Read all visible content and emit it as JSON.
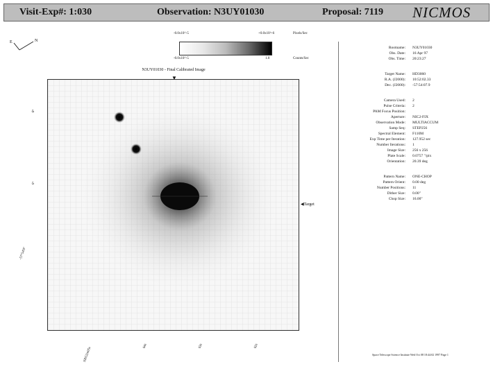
{
  "header": {
    "visit": "Visit-Exp#: 1:030",
    "observation": "Observation: N3UY01030",
    "proposal": "Proposal: 7119",
    "instrument": "NICMOS"
  },
  "compass": {
    "north_label": "N",
    "east_label": "E"
  },
  "colorbar": {
    "top_left": "-0.0x10^-5",
    "top_right": "+0.0x10^-6",
    "top_unit": "Pixels/Sec",
    "bottom_left": "-0.0x10^-5",
    "bottom_right": "1.0",
    "bottom_unit": "Counts/Sec"
  },
  "image_title": "N3UY01030 - Final Calibrated Image",
  "target_label": "Target",
  "axis_left_ticks": [
    "8°",
    "6°",
    "-57°54'0\"",
    ""
  ],
  "axis_bottom_ticks": [
    "10h52m05s",
    "04s",
    "03s",
    "02s"
  ],
  "info": {
    "group1": [
      {
        "label": "Rootname:",
        "value": "N3UY01030"
      },
      {
        "label": "Obs. Date:",
        "value": "16 Apr 97"
      },
      {
        "label": "Obs. Time:",
        "value": "20:23:27"
      }
    ],
    "group2": [
      {
        "label": "Target Name:",
        "value": "HD3060"
      },
      {
        "label": "R.A. (J2000):",
        "value": "10:52:02.33"
      },
      {
        "label": "Dec. (J2000):",
        "value": "-57:54:07.9"
      }
    ],
    "group3": [
      {
        "label": "Camera Used:",
        "value": "2"
      },
      {
        "label": "Pulse Criteria:",
        "value": "2"
      },
      {
        "label": "PAM Focus Position:",
        "value": ""
      },
      {
        "label": "Aperture:",
        "value": "NIC2-FIX"
      },
      {
        "label": "Observation Mode:",
        "value": "MULTIACCUM"
      },
      {
        "label": "Samp Seq:",
        "value": "STEP256"
      },
      {
        "label": "Spectral Element:",
        "value": "F110M"
      },
      {
        "label": "Exp Time per Iteration:",
        "value": "127.952 sec"
      },
      {
        "label": "Number Iterations:",
        "value": "1"
      },
      {
        "label": "Image Size:",
        "value": "256 x 256"
      },
      {
        "label": "Plate Scale:",
        "value": "0.0757 \"/pix"
      },
      {
        "label": "Orientation:",
        "value": "20.39 deg"
      }
    ],
    "group4": [
      {
        "label": "Pattern Name:",
        "value": "ONE-CHOP"
      },
      {
        "label": "Pattern Orient:",
        "value": "0.00 deg"
      },
      {
        "label": "Number Positions:",
        "value": "11"
      },
      {
        "label": "Dither Size:",
        "value": "0.00\""
      },
      {
        "label": "Chop Size:",
        "value": "16.00\""
      }
    ]
  },
  "footer": "Space Telescope Science Institute  Wed Oct 08 18:44:02 1997  Page 1"
}
